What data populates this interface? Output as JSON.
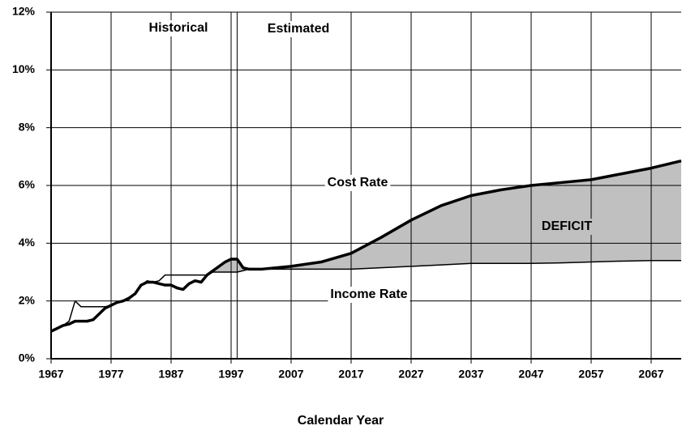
{
  "chart_data": {
    "type": "line",
    "x_label": "Calendar Year",
    "x": [
      1967,
      1968,
      1969,
      1970,
      1971,
      1972,
      1973,
      1974,
      1975,
      1976,
      1977,
      1978,
      1979,
      1980,
      1981,
      1982,
      1983,
      1984,
      1985,
      1986,
      1987,
      1988,
      1989,
      1990,
      1991,
      1992,
      1993,
      1994,
      1995,
      1996,
      1997,
      1998,
      1999,
      2000,
      2002,
      2007,
      2012,
      2017,
      2022,
      2027,
      2032,
      2037,
      2042,
      2047,
      2052,
      2057,
      2062,
      2067,
      2072
    ],
    "series": [
      {
        "name": "Cost Rate",
        "color": "#000000",
        "values": [
          0.95,
          1.05,
          1.15,
          1.2,
          1.3,
          1.3,
          1.3,
          1.35,
          1.55,
          1.75,
          1.85,
          1.95,
          2.0,
          2.1,
          2.25,
          2.55,
          2.65,
          2.65,
          2.6,
          2.55,
          2.55,
          2.45,
          2.4,
          2.6,
          2.7,
          2.65,
          2.9,
          3.05,
          3.2,
          3.35,
          3.45,
          3.45,
          3.15,
          3.1,
          3.1,
          3.2,
          3.35,
          3.65,
          4.2,
          4.8,
          5.3,
          5.65,
          5.85,
          6.0,
          6.1,
          6.2,
          6.4,
          6.6,
          6.85
        ]
      },
      {
        "name": "Income Rate",
        "color": "#000000",
        "values": [
          0.95,
          1.05,
          1.15,
          1.3,
          2.0,
          1.8,
          1.8,
          1.8,
          1.8,
          1.8,
          1.85,
          1.95,
          2.0,
          2.05,
          2.25,
          2.55,
          2.7,
          2.65,
          2.7,
          2.9,
          2.9,
          2.9,
          2.9,
          2.9,
          2.9,
          2.9,
          2.9,
          3.0,
          3.0,
          3.0,
          3.0,
          3.0,
          3.05,
          3.1,
          3.1,
          3.1,
          3.1,
          3.1,
          3.15,
          3.2,
          3.25,
          3.3,
          3.3,
          3.3,
          3.32,
          3.35,
          3.38,
          3.4,
          3.4
        ]
      }
    ],
    "deficit_color": "#c0c0c0",
    "annotations": [
      "Historical",
      "Estimated",
      "Cost Rate",
      "Income Rate",
      "DEFICIT"
    ],
    "divider_x": 1998,
    "xlim": [
      1967,
      2072
    ],
    "xticks": [
      1967,
      1977,
      1987,
      1997,
      2007,
      2017,
      2027,
      2037,
      2047,
      2057,
      2067
    ],
    "ylim": [
      0,
      12
    ],
    "yticks": [
      {
        "value": 0,
        "label": "0%"
      },
      {
        "value": 2,
        "label": "2%"
      },
      {
        "value": 4,
        "label": "4%"
      },
      {
        "value": 6,
        "label": "6%"
      },
      {
        "value": 8,
        "label": "8%"
      },
      {
        "value": 10,
        "label": "10%"
      },
      {
        "value": 12,
        "label": "12%"
      }
    ],
    "grid": true
  }
}
